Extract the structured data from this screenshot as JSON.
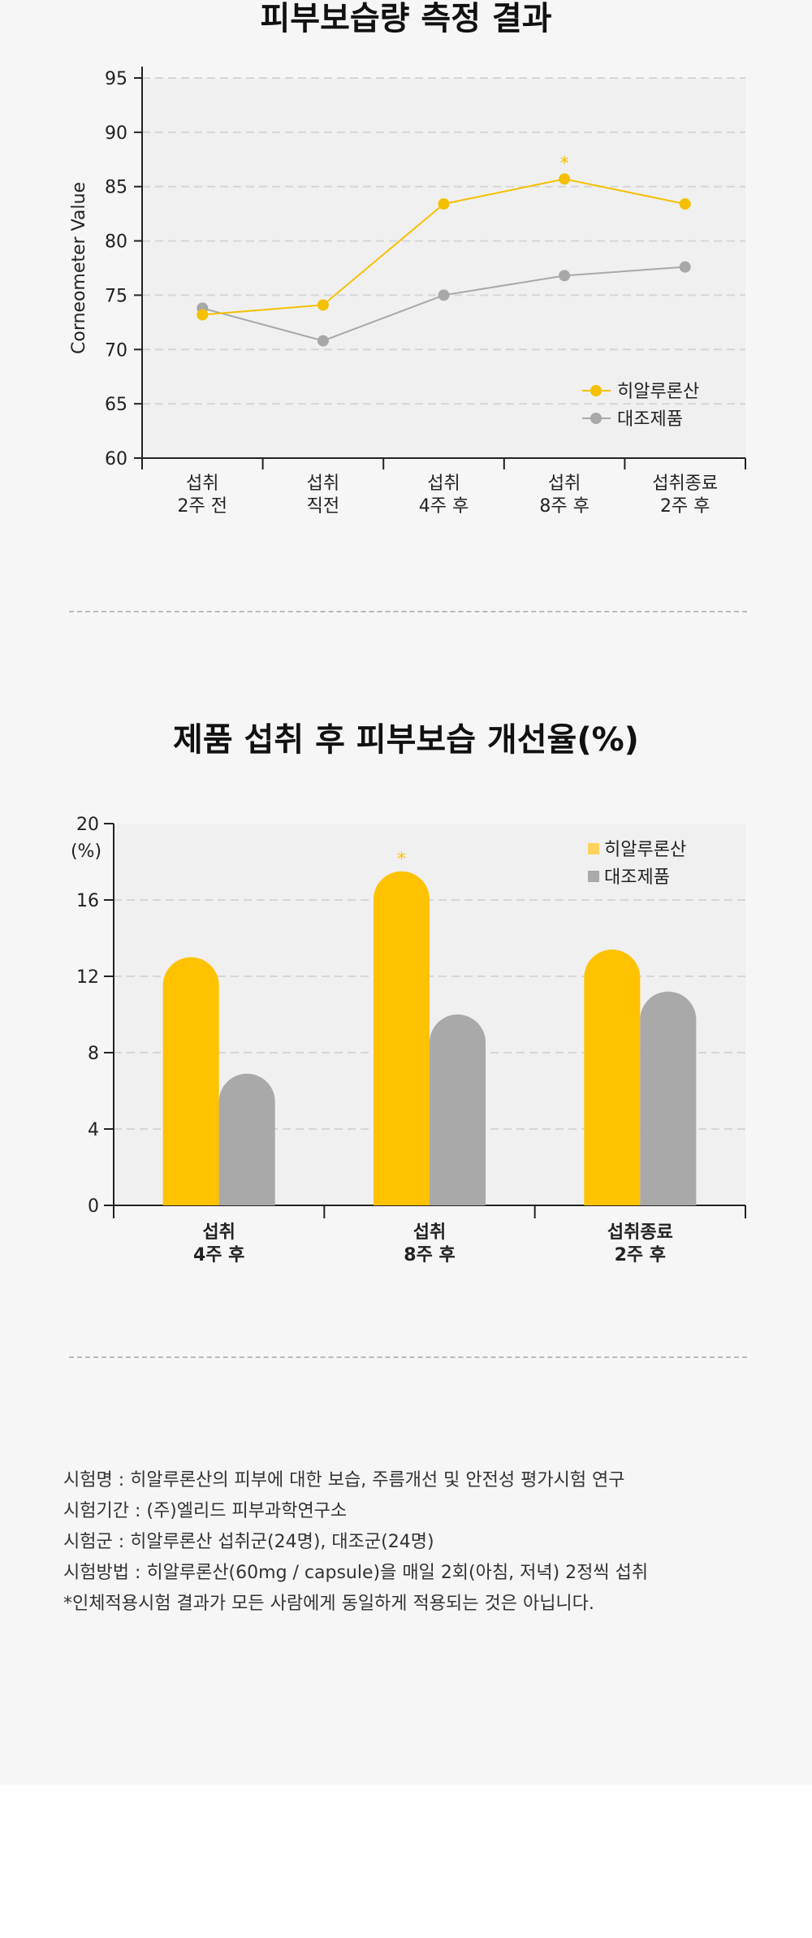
{
  "chart_data": [
    {
      "type": "line",
      "title": "피부보습량 측정 결과",
      "ylabel": "Corneometer Value",
      "xlabel": "",
      "categories": [
        [
          "섭취",
          "2주 전"
        ],
        [
          "섭취",
          "직전"
        ],
        [
          "섭취",
          "4주 후"
        ],
        [
          "섭취",
          "8주 후"
        ],
        [
          "섭취종료",
          "2주 후"
        ]
      ],
      "ylim": [
        60,
        95
      ],
      "yticks": [
        60,
        65,
        70,
        75,
        80,
        85,
        90,
        95
      ],
      "grid": true,
      "legend": "bottom-right",
      "series": [
        {
          "name": "히알루론산",
          "color": "#f5c000",
          "values": [
            73.2,
            74.1,
            83.4,
            85.7,
            83.4
          ]
        },
        {
          "name": "대조제품",
          "color": "#a8a8a8",
          "values": [
            73.8,
            70.8,
            75.0,
            76.8,
            77.6
          ]
        }
      ],
      "annotations": [
        {
          "text": "*",
          "category_index": 3,
          "series": 0
        }
      ]
    },
    {
      "type": "bar",
      "title": "제품 섭취 후 피부보습 개선율(%)",
      "ylabel": "(%)",
      "xlabel": "",
      "categories": [
        [
          "섭취",
          "4주 후"
        ],
        [
          "섭취",
          "8주 후"
        ],
        [
          "섭취종료",
          "2주 후"
        ]
      ],
      "ylim": [
        0,
        20
      ],
      "yticks": [
        0,
        4,
        8,
        12,
        16,
        20
      ],
      "grid": true,
      "legend": "top-right",
      "series": [
        {
          "name": "히알루론산",
          "color": "#ffc200",
          "legend_color": "#ffd35c",
          "values": [
            13.0,
            17.5,
            13.4
          ]
        },
        {
          "name": "대조제품",
          "color": "#a9a9a9",
          "legend_color": "#a9a9a9",
          "values": [
            6.9,
            10.0,
            11.2
          ]
        }
      ],
      "annotations": [
        {
          "text": "*",
          "category_index": 1,
          "series": 0
        }
      ]
    }
  ],
  "notes": [
    "시험명 : 히알루론산의 피부에 대한 보습, 주름개선 및 안전성 평가시험 연구",
    "시험기간 : (주)엘리드 피부과학연구소",
    "시험군 : 히알루론산 섭취군(24명), 대조군(24명)",
    "시험방법 : 히알루론산(60mg / capsule)을 매일 2회(아침, 저녁) 2정씩 섭취",
    "*인체적용시험 결과가 모든 사람에게 동일하게 적용되는 것은 아닙니다."
  ]
}
